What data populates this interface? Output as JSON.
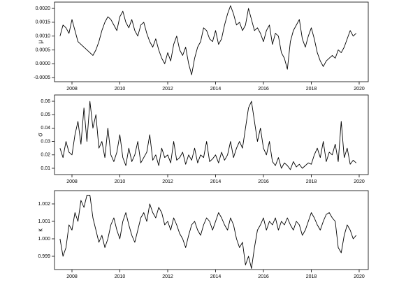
{
  "chart_data": [
    {
      "type": "line",
      "ylabel": "μ",
      "color": "#000000",
      "x": [
        2007.5,
        2007.625,
        2007.75,
        2007.875,
        2008,
        2008.125,
        2008.25,
        2008.375,
        2008.5,
        2008.625,
        2008.75,
        2008.875,
        2009,
        2009.125,
        2009.25,
        2009.375,
        2009.5,
        2009.625,
        2009.75,
        2009.875,
        2010,
        2010.125,
        2010.25,
        2010.375,
        2010.5,
        2010.625,
        2010.75,
        2010.875,
        2011,
        2011.125,
        2011.25,
        2011.375,
        2011.5,
        2011.625,
        2011.75,
        2011.875,
        2012,
        2012.125,
        2012.25,
        2012.375,
        2012.5,
        2012.625,
        2012.75,
        2012.875,
        2013,
        2013.125,
        2013.25,
        2013.375,
        2013.5,
        2013.625,
        2013.75,
        2013.875,
        2014,
        2014.125,
        2014.25,
        2014.375,
        2014.5,
        2014.625,
        2014.75,
        2014.875,
        2015,
        2015.125,
        2015.25,
        2015.375,
        2015.5,
        2015.625,
        2015.75,
        2015.875,
        2016,
        2016.125,
        2016.25,
        2016.375,
        2016.5,
        2016.625,
        2016.75,
        2016.875,
        2017,
        2017.125,
        2017.25,
        2017.375,
        2017.5,
        2017.625,
        2017.75,
        2017.875,
        2018,
        2018.125,
        2018.25,
        2018.375,
        2018.5,
        2018.625,
        2018.75,
        2018.875,
        2019,
        2019.125,
        2019.25,
        2019.375,
        2019.5,
        2019.625,
        2019.75,
        2019.875
      ],
      "values": [
        0.001,
        0.0014,
        0.0013,
        0.0011,
        0.0016,
        0.0012,
        0.0008,
        0.0007,
        0.0006,
        0.0005,
        0.0004,
        0.0003,
        0.0005,
        0.0008,
        0.0012,
        0.0015,
        0.0017,
        0.0016,
        0.0014,
        0.0012,
        0.0017,
        0.0019,
        0.0015,
        0.0013,
        0.0016,
        0.0012,
        0.001,
        0.0014,
        0.0015,
        0.0011,
        0.0008,
        0.0006,
        0.0009,
        0.0005,
        0.0002,
        0.0,
        0.0004,
        0.0001,
        0.0007,
        0.001,
        0.0005,
        0.0003,
        0.0006,
        0.0,
        -0.0004,
        0.0002,
        0.0006,
        0.0008,
        0.0013,
        0.0012,
        0.0009,
        0.0008,
        0.0012,
        0.0007,
        0.0009,
        0.0014,
        0.0018,
        0.0021,
        0.0018,
        0.0014,
        0.0015,
        0.0012,
        0.0014,
        0.002,
        0.0016,
        0.0012,
        0.0013,
        0.0011,
        0.0008,
        0.0012,
        0.0014,
        0.0007,
        0.0011,
        0.001,
        0.0004,
        0.0002,
        -0.0002,
        0.0008,
        0.0012,
        0.0014,
        0.0016,
        0.0009,
        0.0006,
        0.001,
        0.0013,
        0.0009,
        0.0004,
        0.0001,
        -0.0001,
        0.0001,
        0.0002,
        0.0003,
        0.0002,
        0.0005,
        0.0004,
        0.0006,
        0.0009,
        0.0012,
        0.001,
        0.0011
      ],
      "xlim": [
        2007.27,
        2020.38
      ],
      "xticks": [
        2008,
        2010,
        2012,
        2014,
        2016,
        2018,
        2020
      ],
      "ylim": [
        -0.00065,
        0.00223
      ],
      "yticks": [
        {
          "value": -0.0005,
          "label": "-0.0005"
        },
        {
          "value": 0,
          "label": "0.0000"
        },
        {
          "value": 0.0005,
          "label": "0.0005"
        },
        {
          "value": 0.001,
          "label": "0.0010"
        },
        {
          "value": 0.0015,
          "label": "0.0015"
        },
        {
          "value": 0.002,
          "label": "0.0020"
        }
      ]
    },
    {
      "type": "line",
      "ylabel": "σ",
      "color": "#000000",
      "x": [
        2007.5,
        2007.625,
        2007.75,
        2007.875,
        2008,
        2008.125,
        2008.25,
        2008.375,
        2008.5,
        2008.625,
        2008.75,
        2008.875,
        2009,
        2009.125,
        2009.25,
        2009.375,
        2009.5,
        2009.625,
        2009.75,
        2009.875,
        2010,
        2010.125,
        2010.25,
        2010.375,
        2010.5,
        2010.625,
        2010.75,
        2010.875,
        2011,
        2011.125,
        2011.25,
        2011.375,
        2011.5,
        2011.625,
        2011.75,
        2011.875,
        2012,
        2012.125,
        2012.25,
        2012.375,
        2012.5,
        2012.625,
        2012.75,
        2012.875,
        2013,
        2013.125,
        2013.25,
        2013.375,
        2013.5,
        2013.625,
        2013.75,
        2013.875,
        2014,
        2014.125,
        2014.25,
        2014.375,
        2014.5,
        2014.625,
        2014.75,
        2014.875,
        2015,
        2015.125,
        2015.25,
        2015.375,
        2015.5,
        2015.625,
        2015.75,
        2015.875,
        2016,
        2016.125,
        2016.25,
        2016.375,
        2016.5,
        2016.625,
        2016.75,
        2016.875,
        2017,
        2017.125,
        2017.25,
        2017.375,
        2017.5,
        2017.625,
        2017.75,
        2017.875,
        2018,
        2018.125,
        2018.25,
        2018.375,
        2018.5,
        2018.625,
        2018.75,
        2018.875,
        2019,
        2019.125,
        2019.25,
        2019.375,
        2019.5,
        2019.625,
        2019.75,
        2019.875
      ],
      "values": [
        0.025,
        0.018,
        0.03,
        0.022,
        0.02,
        0.035,
        0.045,
        0.028,
        0.055,
        0.03,
        0.06,
        0.04,
        0.05,
        0.025,
        0.03,
        0.018,
        0.04,
        0.02,
        0.015,
        0.022,
        0.035,
        0.018,
        0.012,
        0.025,
        0.015,
        0.02,
        0.03,
        0.014,
        0.018,
        0.022,
        0.035,
        0.016,
        0.02,
        0.012,
        0.025,
        0.018,
        0.02,
        0.014,
        0.03,
        0.016,
        0.018,
        0.022,
        0.013,
        0.02,
        0.016,
        0.025,
        0.014,
        0.02,
        0.018,
        0.03,
        0.015,
        0.017,
        0.02,
        0.014,
        0.022,
        0.016,
        0.02,
        0.03,
        0.018,
        0.025,
        0.03,
        0.025,
        0.04,
        0.055,
        0.06,
        0.045,
        0.03,
        0.04,
        0.025,
        0.02,
        0.03,
        0.015,
        0.012,
        0.018,
        0.01,
        0.014,
        0.012,
        0.009,
        0.015,
        0.011,
        0.013,
        0.01,
        0.012,
        0.014,
        0.013,
        0.02,
        0.025,
        0.018,
        0.03,
        0.015,
        0.022,
        0.02,
        0.028,
        0.015,
        0.045,
        0.018,
        0.025,
        0.013,
        0.016,
        0.014
      ],
      "xlim": [
        2007.27,
        2020.38
      ],
      "xticks": [
        2008,
        2010,
        2012,
        2014,
        2016,
        2018,
        2020
      ],
      "ylim": [
        0.0053,
        0.0647
      ],
      "yticks": [
        0.01,
        0.02,
        0.03,
        0.04,
        0.05,
        0.06
      ]
    },
    {
      "type": "line",
      "ylabel": "κ",
      "color": "#000000",
      "x": [
        2007.5,
        2007.625,
        2007.75,
        2007.875,
        2008,
        2008.125,
        2008.25,
        2008.375,
        2008.5,
        2008.625,
        2008.75,
        2008.875,
        2009,
        2009.125,
        2009.25,
        2009.375,
        2009.5,
        2009.625,
        2009.75,
        2009.875,
        2010,
        2010.125,
        2010.25,
        2010.375,
        2010.5,
        2010.625,
        2010.75,
        2010.875,
        2011,
        2011.125,
        2011.25,
        2011.375,
        2011.5,
        2011.625,
        2011.75,
        2011.875,
        2012,
        2012.125,
        2012.25,
        2012.375,
        2012.5,
        2012.625,
        2012.75,
        2012.875,
        2013,
        2013.125,
        2013.25,
        2013.375,
        2013.5,
        2013.625,
        2013.75,
        2013.875,
        2014,
        2014.125,
        2014.25,
        2014.375,
        2014.5,
        2014.625,
        2014.75,
        2014.875,
        2015,
        2015.125,
        2015.25,
        2015.375,
        2015.5,
        2015.625,
        2015.75,
        2015.875,
        2016,
        2016.125,
        2016.25,
        2016.375,
        2016.5,
        2016.625,
        2016.75,
        2016.875,
        2017,
        2017.125,
        2017.25,
        2017.375,
        2017.5,
        2017.625,
        2017.75,
        2017.875,
        2018,
        2018.125,
        2018.25,
        2018.375,
        2018.5,
        2018.625,
        2018.75,
        2018.875,
        2019,
        2019.125,
        2019.25,
        2019.375,
        2019.5,
        2019.625,
        2019.75,
        2019.875
      ],
      "values": [
        1.0,
        0.999,
        0.9995,
        1.0008,
        1.0005,
        1.0015,
        1.001,
        1.0022,
        1.0018,
        1.0025,
        1.0025,
        1.0012,
        1.0005,
        0.9998,
        1.0002,
        0.9995,
        1.0,
        1.0008,
        1.0012,
        1.0005,
        1.0,
        1.001,
        1.0015,
        1.0008,
        1.0002,
        0.9998,
        1.0005,
        1.0012,
        1.0015,
        1.001,
        1.002,
        1.0015,
        1.0012,
        1.0018,
        1.0015,
        1.0008,
        1.001,
        1.0005,
        1.0012,
        1.0008,
        1.0003,
        1.0,
        0.9995,
        1.0002,
        1.0008,
        1.001,
        1.0005,
        1.0002,
        1.0008,
        1.0012,
        1.001,
        1.0005,
        1.001,
        1.0015,
        1.0012,
        1.0008,
        1.0005,
        1.0012,
        1.0008,
        1.0,
        0.9995,
        0.9998,
        0.9985,
        0.999,
        0.9983,
        0.9995,
        1.0005,
        1.0008,
        1.0012,
        1.0005,
        1.001,
        1.0008,
        1.0012,
        1.0005,
        1.001,
        1.0008,
        1.0012,
        1.0008,
        1.0005,
        1.001,
        1.0008,
        1.0002,
        1.0005,
        1.001,
        1.0015,
        1.0012,
        1.0008,
        1.0005,
        1.001,
        1.0014,
        1.0015,
        1.0012,
        1.001,
        0.9995,
        0.9992,
        1.0002,
        1.0008,
        1.0005,
        1.0,
        1.0002
      ],
      "xlim": [
        2007.27,
        2020.38
      ],
      "xticks": [
        2008,
        2010,
        2012,
        2014,
        2016,
        2018,
        2020
      ],
      "ylim": [
        0.99824,
        1.00276
      ],
      "yticks": [
        {
          "value": 0.999,
          "label": "0.999"
        },
        {
          "value": 1,
          "label": "1.000"
        },
        {
          "value": 1.001,
          "label": "1.001"
        },
        {
          "value": 1.002,
          "label": "1.002"
        }
      ]
    }
  ]
}
